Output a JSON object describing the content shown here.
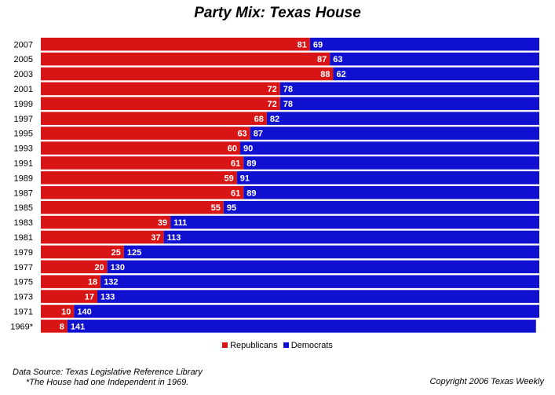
{
  "chart_data": {
    "type": "bar",
    "orientation": "horizontal",
    "stacked": true,
    "title": "Party Mix: Texas House",
    "categories": [
      "2007",
      "2005",
      "2003",
      "2001",
      "1999",
      "1997",
      "1995",
      "1993",
      "1991",
      "1989",
      "1987",
      "1985",
      "1983",
      "1981",
      "1979",
      "1977",
      "1975",
      "1973",
      "1971",
      "1969*"
    ],
    "series": [
      {
        "name": "Republicans",
        "color": "#d91414",
        "values": [
          81,
          87,
          88,
          72,
          72,
          68,
          63,
          60,
          61,
          59,
          61,
          55,
          39,
          37,
          25,
          20,
          18,
          17,
          10,
          8
        ]
      },
      {
        "name": "Democrats",
        "color": "#1010d0",
        "values": [
          69,
          63,
          62,
          78,
          78,
          82,
          87,
          90,
          89,
          91,
          89,
          95,
          111,
          113,
          125,
          130,
          132,
          133,
          140,
          141
        ]
      }
    ],
    "xlim": [
      0,
      150
    ],
    "legend": "bottom-center",
    "grid": false
  },
  "legend": {
    "republicans": "Republicans",
    "democrats": "Democrats"
  },
  "footer": {
    "source_line1": "Data Source: Texas Legislative Reference Library",
    "source_line2": "*The House had one Independent in 1969.",
    "copyright": "Copyright 2006 Texas Weekly"
  }
}
